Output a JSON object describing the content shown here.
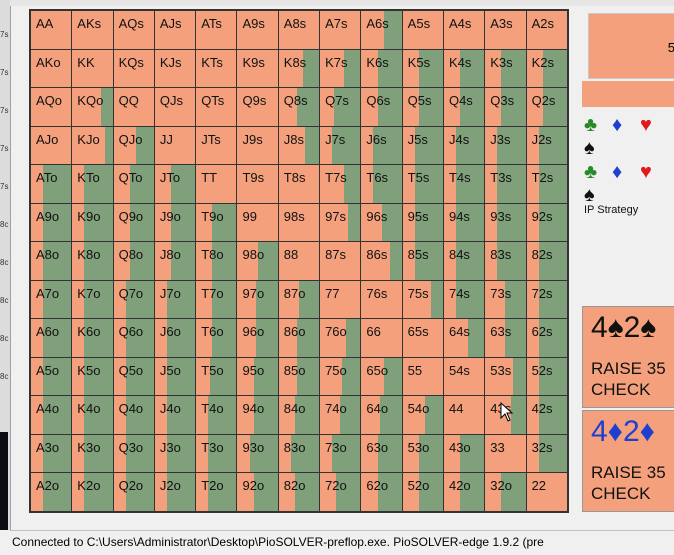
{
  "left_strip_marks": [
    "7s",
    "7s",
    "7s",
    "7s",
    "7s",
    "8c",
    "8c",
    "8c",
    "8c",
    "8c"
  ],
  "grid": {
    "rows": [
      [
        [
          "AA",
          0
        ],
        [
          "AKs",
          0
        ],
        [
          "AQs",
          0
        ],
        [
          "AJs",
          0
        ],
        [
          "ATs",
          0
        ],
        [
          "A9s",
          0
        ],
        [
          "A8s",
          0
        ],
        [
          "A7s",
          0
        ],
        [
          "A6s",
          0.45
        ],
        [
          "A5s",
          0
        ],
        [
          "A4s",
          0
        ],
        [
          "A3s",
          0
        ],
        [
          "A2s",
          0
        ]
      ],
      [
        [
          "AKo",
          0
        ],
        [
          "KK",
          0
        ],
        [
          "KQs",
          0
        ],
        [
          "KJs",
          0
        ],
        [
          "KTs",
          0
        ],
        [
          "K9s",
          0
        ],
        [
          "K8s",
          0.4
        ],
        [
          "K7s",
          0.4
        ],
        [
          "K6s",
          0.6
        ],
        [
          "K5s",
          0.6
        ],
        [
          "K4s",
          0.6
        ],
        [
          "K3s",
          0.6
        ],
        [
          "K2s",
          0.6
        ]
      ],
      [
        [
          "AQo",
          0
        ],
        [
          "KQo",
          0.3
        ],
        [
          "QQ",
          0
        ],
        [
          "QJs",
          0
        ],
        [
          "QTs",
          0
        ],
        [
          "Q9s",
          0
        ],
        [
          "Q8s",
          0.55
        ],
        [
          "Q7s",
          0.65
        ],
        [
          "Q6s",
          0.6
        ],
        [
          "Q5s",
          0.6
        ],
        [
          "Q4s",
          0.6
        ],
        [
          "Q3s",
          0.6
        ],
        [
          "Q2s",
          0.6
        ]
      ],
      [
        [
          "AJo",
          0
        ],
        [
          "KJo",
          0.2
        ],
        [
          "QJo",
          0.45
        ],
        [
          "JJ",
          0
        ],
        [
          "JTs",
          0
        ],
        [
          "J9s",
          0
        ],
        [
          "J8s",
          0.35
        ],
        [
          "J7s",
          0.7
        ],
        [
          "J6s",
          0.7
        ],
        [
          "J5s",
          0.7
        ],
        [
          "J4s",
          0.7
        ],
        [
          "J3s",
          0.7
        ],
        [
          "J2s",
          0.7
        ]
      ],
      [
        [
          "ATo",
          0.7
        ],
        [
          "KTo",
          0.7
        ],
        [
          "QTo",
          0.6
        ],
        [
          "JTo",
          0.6
        ],
        [
          "TT",
          0
        ],
        [
          "T9s",
          0
        ],
        [
          "T8s",
          0
        ],
        [
          "T7s",
          0.4
        ],
        [
          "T6s",
          0.7
        ],
        [
          "T5s",
          0.7
        ],
        [
          "T4s",
          0.7
        ],
        [
          "T3s",
          0.7
        ],
        [
          "T2s",
          0.7
        ]
      ],
      [
        [
          "A9o",
          0.7
        ],
        [
          "K9o",
          0.7
        ],
        [
          "Q9o",
          0.6
        ],
        [
          "J9o",
          0.6
        ],
        [
          "T9o",
          0.6
        ],
        [
          "99",
          0
        ],
        [
          "98s",
          0
        ],
        [
          "97s",
          0.3
        ],
        [
          "96s",
          0.5
        ],
        [
          "95s",
          0.7
        ],
        [
          "94s",
          0.7
        ],
        [
          "93s",
          0.7
        ],
        [
          "92s",
          0.7
        ]
      ],
      [
        [
          "A8o",
          0.7
        ],
        [
          "K8o",
          0.7
        ],
        [
          "Q8o",
          0.6
        ],
        [
          "J8o",
          0.6
        ],
        [
          "T8o",
          0.6
        ],
        [
          "98o",
          0.5
        ],
        [
          "88",
          0
        ],
        [
          "87s",
          0
        ],
        [
          "86s",
          0.3
        ],
        [
          "85s",
          0.7
        ],
        [
          "84s",
          0.7
        ],
        [
          "83s",
          0.7
        ],
        [
          "82s",
          0.7
        ]
      ],
      [
        [
          "A7o",
          0.7
        ],
        [
          "K7o",
          0.7
        ],
        [
          "Q7o",
          0.7
        ],
        [
          "J7o",
          0.7
        ],
        [
          "T7o",
          0.6
        ],
        [
          "97o",
          0.55
        ],
        [
          "87o",
          0.5
        ],
        [
          "77",
          0
        ],
        [
          "76s",
          0
        ],
        [
          "75s",
          0.3
        ],
        [
          "74s",
          0.7
        ],
        [
          "73s",
          0.5
        ],
        [
          "72s",
          0.7
        ]
      ],
      [
        [
          "A6o",
          0.7
        ],
        [
          "K6o",
          0.7
        ],
        [
          "Q6o",
          0.7
        ],
        [
          "J6o",
          0.7
        ],
        [
          "T6o",
          0.6
        ],
        [
          "96o",
          0.55
        ],
        [
          "86o",
          0.55
        ],
        [
          "76o",
          0.35
        ],
        [
          "66",
          0
        ],
        [
          "65s",
          0
        ],
        [
          "64s",
          0.4
        ],
        [
          "63s",
          0.5
        ],
        [
          "62s",
          0.7
        ]
      ],
      [
        [
          "A5o",
          0.7
        ],
        [
          "K5o",
          0.7
        ],
        [
          "Q5o",
          0.7
        ],
        [
          "J5o",
          0.7
        ],
        [
          "T5o",
          0.65
        ],
        [
          "95o",
          0.6
        ],
        [
          "85o",
          0.55
        ],
        [
          "75o",
          0.45
        ],
        [
          "65o",
          0.45
        ],
        [
          "55",
          0
        ],
        [
          "54s",
          0
        ],
        [
          "53s",
          0.3
        ],
        [
          "52s",
          0.7
        ]
      ],
      [
        [
          "A4o",
          0.7
        ],
        [
          "K4o",
          0.7
        ],
        [
          "Q4o",
          0.7
        ],
        [
          "J4o",
          0.7
        ],
        [
          "T4o",
          0.7
        ],
        [
          "94o",
          0.6
        ],
        [
          "84o",
          0.6
        ],
        [
          "74o",
          0.5
        ],
        [
          "64o",
          0.55
        ],
        [
          "54o",
          0.45
        ],
        [
          "44",
          0
        ],
        [
          "43s",
          0.35
        ],
        [
          "42s",
          0.7
        ]
      ],
      [
        [
          "A3o",
          0.7
        ],
        [
          "K3o",
          0.7
        ],
        [
          "Q3o",
          0.7
        ],
        [
          "J3o",
          0.7
        ],
        [
          "T3o",
          0.7
        ],
        [
          "93o",
          0.7
        ],
        [
          "83o",
          0.7
        ],
        [
          "73o",
          0.7
        ],
        [
          "63o",
          0.6
        ],
        [
          "53o",
          0.6
        ],
        [
          "43o",
          0.6
        ],
        [
          "33",
          0
        ],
        [
          "32s",
          0.7
        ]
      ],
      [
        [
          "A2o",
          0.7
        ],
        [
          "K2o",
          0.7
        ],
        [
          "Q2o",
          0.7
        ],
        [
          "J2o",
          0.7
        ],
        [
          "T2o",
          0.7
        ],
        [
          "92o",
          0.6
        ],
        [
          "82o",
          0.6
        ],
        [
          "72o",
          0.6
        ],
        [
          "62o",
          0.6
        ],
        [
          "52o",
          0.6
        ],
        [
          "42o",
          0.6
        ],
        [
          "32o",
          0.6
        ],
        [
          "22",
          0
        ]
      ]
    ]
  },
  "right_panel": {
    "top_value": "5",
    "suit_row_1": [
      "♣",
      "♦",
      "♥",
      "♠"
    ],
    "suit_row_2": [
      "♣",
      "♦",
      "♥",
      "♠"
    ],
    "ip_strategy_label": "IP Strategy",
    "strategies": [
      {
        "cards": "4♠2♠",
        "raise": "RAISE 35",
        "check": "CHECK"
      },
      {
        "cards": "4♦2♦",
        "raise": "RAISE 35",
        "check": "CHECK"
      }
    ]
  },
  "status": "Connected to C:\\Users\\Administrator\\Desktop\\PioSOLVER-preflop.exe. PioSOLVER-edge 1.9.2 (pre",
  "colors": {
    "raise": "#f4a07c",
    "check": "#7fa07a"
  }
}
